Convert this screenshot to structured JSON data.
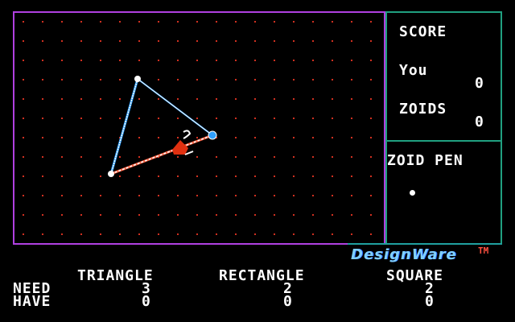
{
  "scoreboard": {
    "title": "SCORE",
    "you_label": "You",
    "you_value": "0",
    "zoids_label": "ZOIDS",
    "zoids_value": "0"
  },
  "zoid_pen": {
    "label": "ZOID PEN"
  },
  "logo": {
    "text": "DesignWare",
    "tm": "TM"
  },
  "goals": {
    "need_label": "NEED",
    "have_label": "HAVE",
    "shapes": [
      {
        "name": "TRIANGLE",
        "need": "3",
        "have": "0"
      },
      {
        "name": "RECTANGLE",
        "need": "2",
        "have": "0"
      },
      {
        "name": "SQUARE",
        "need": "2",
        "have": "0"
      }
    ]
  },
  "colors": {
    "board_border": "#b040e0",
    "side_border": "#20a080",
    "grid_dot": "#d03020",
    "line": "#ffffff",
    "zoid": "#e03010",
    "vertex_active": "#30a0ff"
  }
}
